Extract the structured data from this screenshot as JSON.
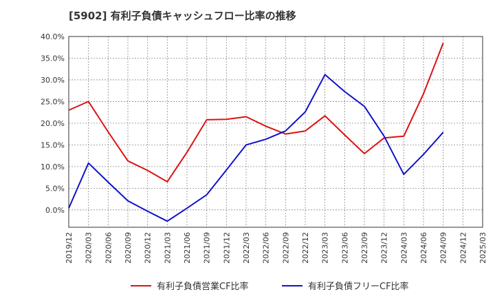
{
  "chart_data": {
    "type": "line",
    "title": "[5902]  有利子負債キャッシュフロー比率の推移",
    "x": [
      "2019/12",
      "2020/03",
      "2020/06",
      "2020/09",
      "2020/12",
      "2021/03",
      "2021/06",
      "2021/09",
      "2021/12",
      "2022/03",
      "2022/06",
      "2022/09",
      "2022/12",
      "2023/03",
      "2023/06",
      "2023/09",
      "2023/12",
      "2024/03",
      "2024/06",
      "2024/09",
      "2024/12",
      "2025/03"
    ],
    "ylim": [
      -4.0,
      40.0
    ],
    "yticks": [
      "0.0%",
      "5.0%",
      "10.0%",
      "15.0%",
      "20.0%",
      "25.0%",
      "30.0%",
      "35.0%",
      "40.0%"
    ],
    "ytick_values": [
      0,
      5,
      10,
      15,
      20,
      25,
      30,
      35,
      40
    ],
    "grid": true,
    "legend_position": "bottom",
    "series": [
      {
        "name": "有利子負債営業CF比率",
        "color": "#dd1111",
        "values": [
          23.0,
          25.0,
          18.0,
          11.3,
          9.1,
          6.5,
          13.3,
          20.8,
          20.9,
          21.5,
          19.3,
          17.5,
          18.2,
          21.7,
          17.3,
          13.0,
          16.6,
          17.0,
          26.8,
          38.5,
          null,
          null
        ]
      },
      {
        "name": "有利子負債フリーCF比率",
        "color": "#1111cc",
        "values": [
          0.4,
          10.8,
          6.4,
          2.1,
          -0.3,
          -2.6,
          0.4,
          3.5,
          9.2,
          15.0,
          16.3,
          18.2,
          22.6,
          31.2,
          27.3,
          23.9,
          17.0,
          8.2,
          12.8,
          17.9,
          null,
          null
        ]
      }
    ]
  }
}
